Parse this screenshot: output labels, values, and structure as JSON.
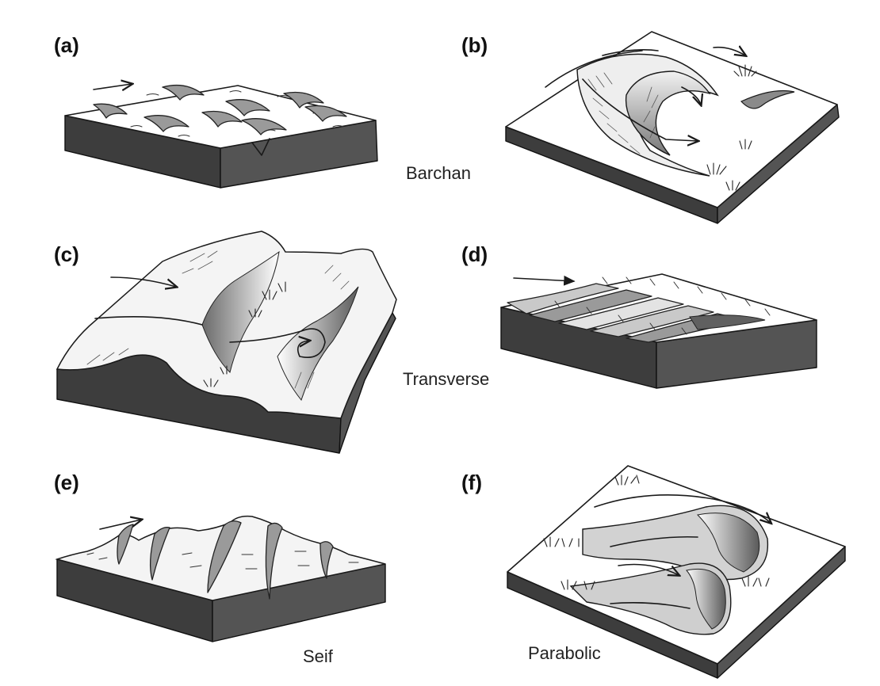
{
  "panels": {
    "a": {
      "label": "(a)"
    },
    "b": {
      "label": "(b)"
    },
    "c": {
      "label": "(c)"
    },
    "d": {
      "label": "(d)"
    },
    "e": {
      "label": "(e)"
    },
    "f": {
      "label": "(f)"
    }
  },
  "dune_types": {
    "barchan": "Barchan",
    "transverse": "Transverse",
    "seif": "Seif",
    "parabolic": "Parabolic"
  },
  "colors": {
    "block_side": "#3d3d3d",
    "dune_shade": "#9a9a9a",
    "ink": "#1a1a1a"
  }
}
